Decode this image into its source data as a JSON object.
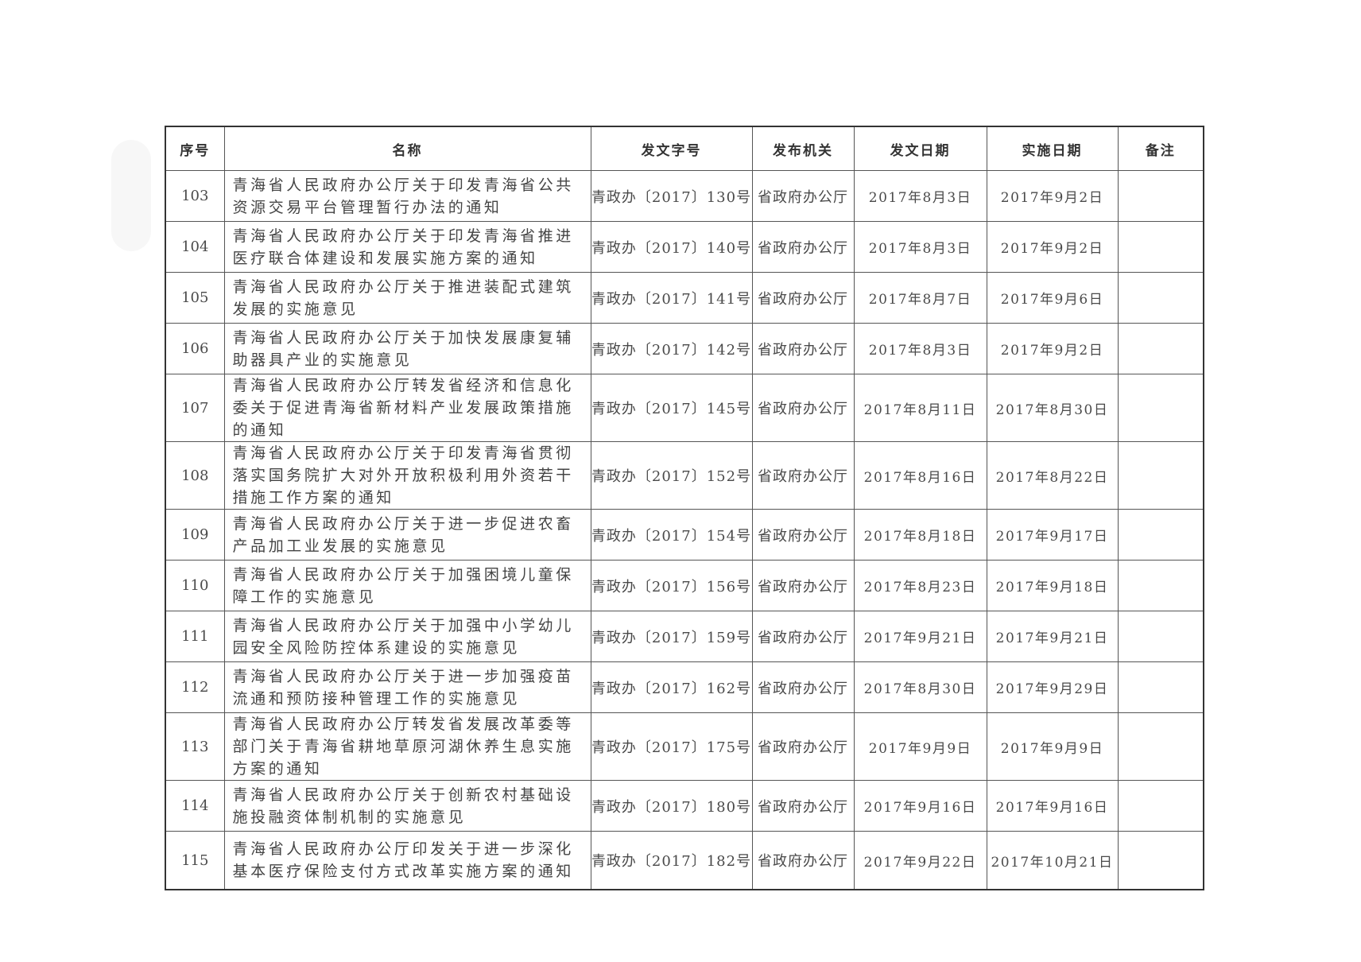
{
  "headers": [
    "序号",
    "名称",
    "发文字号",
    "发布机关",
    "发文日期",
    "实施日期",
    "备注"
  ],
  "rows": [
    {
      "seq": "103",
      "name": "青海省人民政府办公厅关于印发青海省公共资源交易平台管理暂行办法的通知",
      "code": "青政办〔2017〕130号",
      "org": "省政府办公厅",
      "issue_date": "2017年8月3日",
      "effective_date": "2017年9月2日",
      "note": ""
    },
    {
      "seq": "104",
      "name": "青海省人民政府办公厅关于印发青海省推进医疗联合体建设和发展实施方案的通知",
      "code": "青政办〔2017〕140号",
      "org": "省政府办公厅",
      "issue_date": "2017年8月3日",
      "effective_date": "2017年9月2日",
      "note": ""
    },
    {
      "seq": "105",
      "name": "青海省人民政府办公厅关于推进装配式建筑发展的实施意见",
      "code": "青政办〔2017〕141号",
      "org": "省政府办公厅",
      "issue_date": "2017年8月7日",
      "effective_date": "2017年9月6日",
      "note": ""
    },
    {
      "seq": "106",
      "name": "青海省人民政府办公厅关于加快发展康复辅助器具产业的实施意见",
      "code": "青政办〔2017〕142号",
      "org": "省政府办公厅",
      "issue_date": "2017年8月3日",
      "effective_date": "2017年9月2日",
      "note": ""
    },
    {
      "seq": "107",
      "name": "青海省人民政府办公厅转发省经济和信息化委关于促进青海省新材料产业发展政策措施的通知",
      "code": "青政办〔2017〕145号",
      "org": "省政府办公厅",
      "issue_date": "2017年8月11日",
      "effective_date": "2017年8月30日",
      "note": ""
    },
    {
      "seq": "108",
      "name": "青海省人民政府办公厅关于印发青海省贯彻落实国务院扩大对外开放积极利用外资若干措施工作方案的通知",
      "code": "青政办〔2017〕152号",
      "org": "省政府办公厅",
      "issue_date": "2017年8月16日",
      "effective_date": "2017年8月22日",
      "note": ""
    },
    {
      "seq": "109",
      "name": "青海省人民政府办公厅关于进一步促进农畜产品加工业发展的实施意见",
      "code": "青政办〔2017〕154号",
      "org": "省政府办公厅",
      "issue_date": "2017年8月18日",
      "effective_date": "2017年9月17日",
      "note": ""
    },
    {
      "seq": "110",
      "name": "青海省人民政府办公厅关于加强困境儿童保障工作的实施意见",
      "code": "青政办〔2017〕156号",
      "org": "省政府办公厅",
      "issue_date": "2017年8月23日",
      "effective_date": "2017年9月18日",
      "note": ""
    },
    {
      "seq": "111",
      "name": "青海省人民政府办公厅关于加强中小学幼儿园安全风险防控体系建设的实施意见",
      "code": "青政办〔2017〕159号",
      "org": "省政府办公厅",
      "issue_date": "2017年9月21日",
      "effective_date": "2017年9月21日",
      "note": ""
    },
    {
      "seq": "112",
      "name": "青海省人民政府办公厅关于进一步加强疫苗流通和预防接种管理工作的实施意见",
      "code": "青政办〔2017〕162号",
      "org": "省政府办公厅",
      "issue_date": "2017年8月30日",
      "effective_date": "2017年9月29日",
      "note": ""
    },
    {
      "seq": "113",
      "name": "青海省人民政府办公厅转发省发展改革委等部门关于青海省耕地草原河湖休养生息实施方案的通知",
      "code": "青政办〔2017〕175号",
      "org": "省政府办公厅",
      "issue_date": "2017年9月9日",
      "effective_date": "2017年9月9日",
      "note": ""
    },
    {
      "seq": "114",
      "name": "青海省人民政府办公厅关于创新农村基础设施投融资体制机制的实施意见",
      "code": "青政办〔2017〕180号",
      "org": "省政府办公厅",
      "issue_date": "2017年9月16日",
      "effective_date": "2017年9月16日",
      "note": ""
    },
    {
      "seq": "115",
      "name": "青海省人民政府办公厅印发关于进一步深化基本医疗保险支付方式改革实施方案的通知",
      "code": "青政办〔2017〕182号",
      "org": "省政府办公厅",
      "issue_date": "2017年9月22日",
      "effective_date": "2017年10月21日",
      "note": ""
    }
  ]
}
